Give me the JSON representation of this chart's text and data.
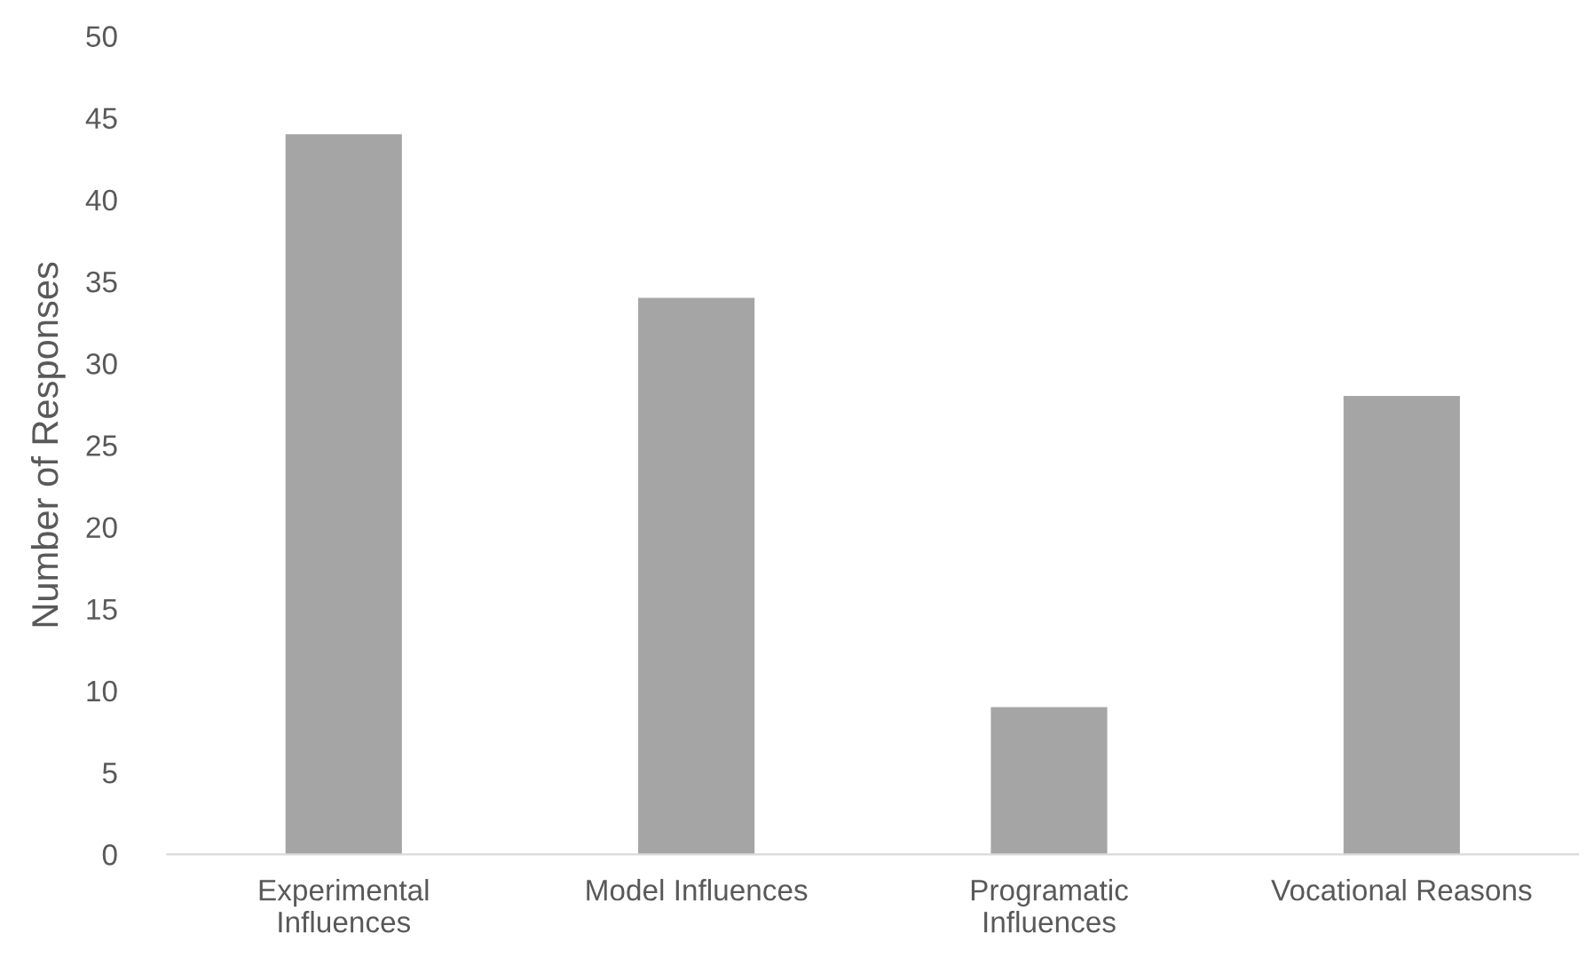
{
  "chart_data": {
    "type": "bar",
    "ylabel": "Number of Responses",
    "categories": [
      "Experimental\nInfluences",
      "Model Influences",
      "Programatic\nInfluences",
      "Vocational Reasons"
    ],
    "values": [
      44,
      34,
      9,
      28
    ],
    "color": "#a5a5a5",
    "ylim": [
      0,
      50
    ],
    "yticks": [
      0,
      5,
      10,
      15,
      20,
      25,
      30,
      35,
      40,
      45,
      50
    ],
    "grid": false
  }
}
